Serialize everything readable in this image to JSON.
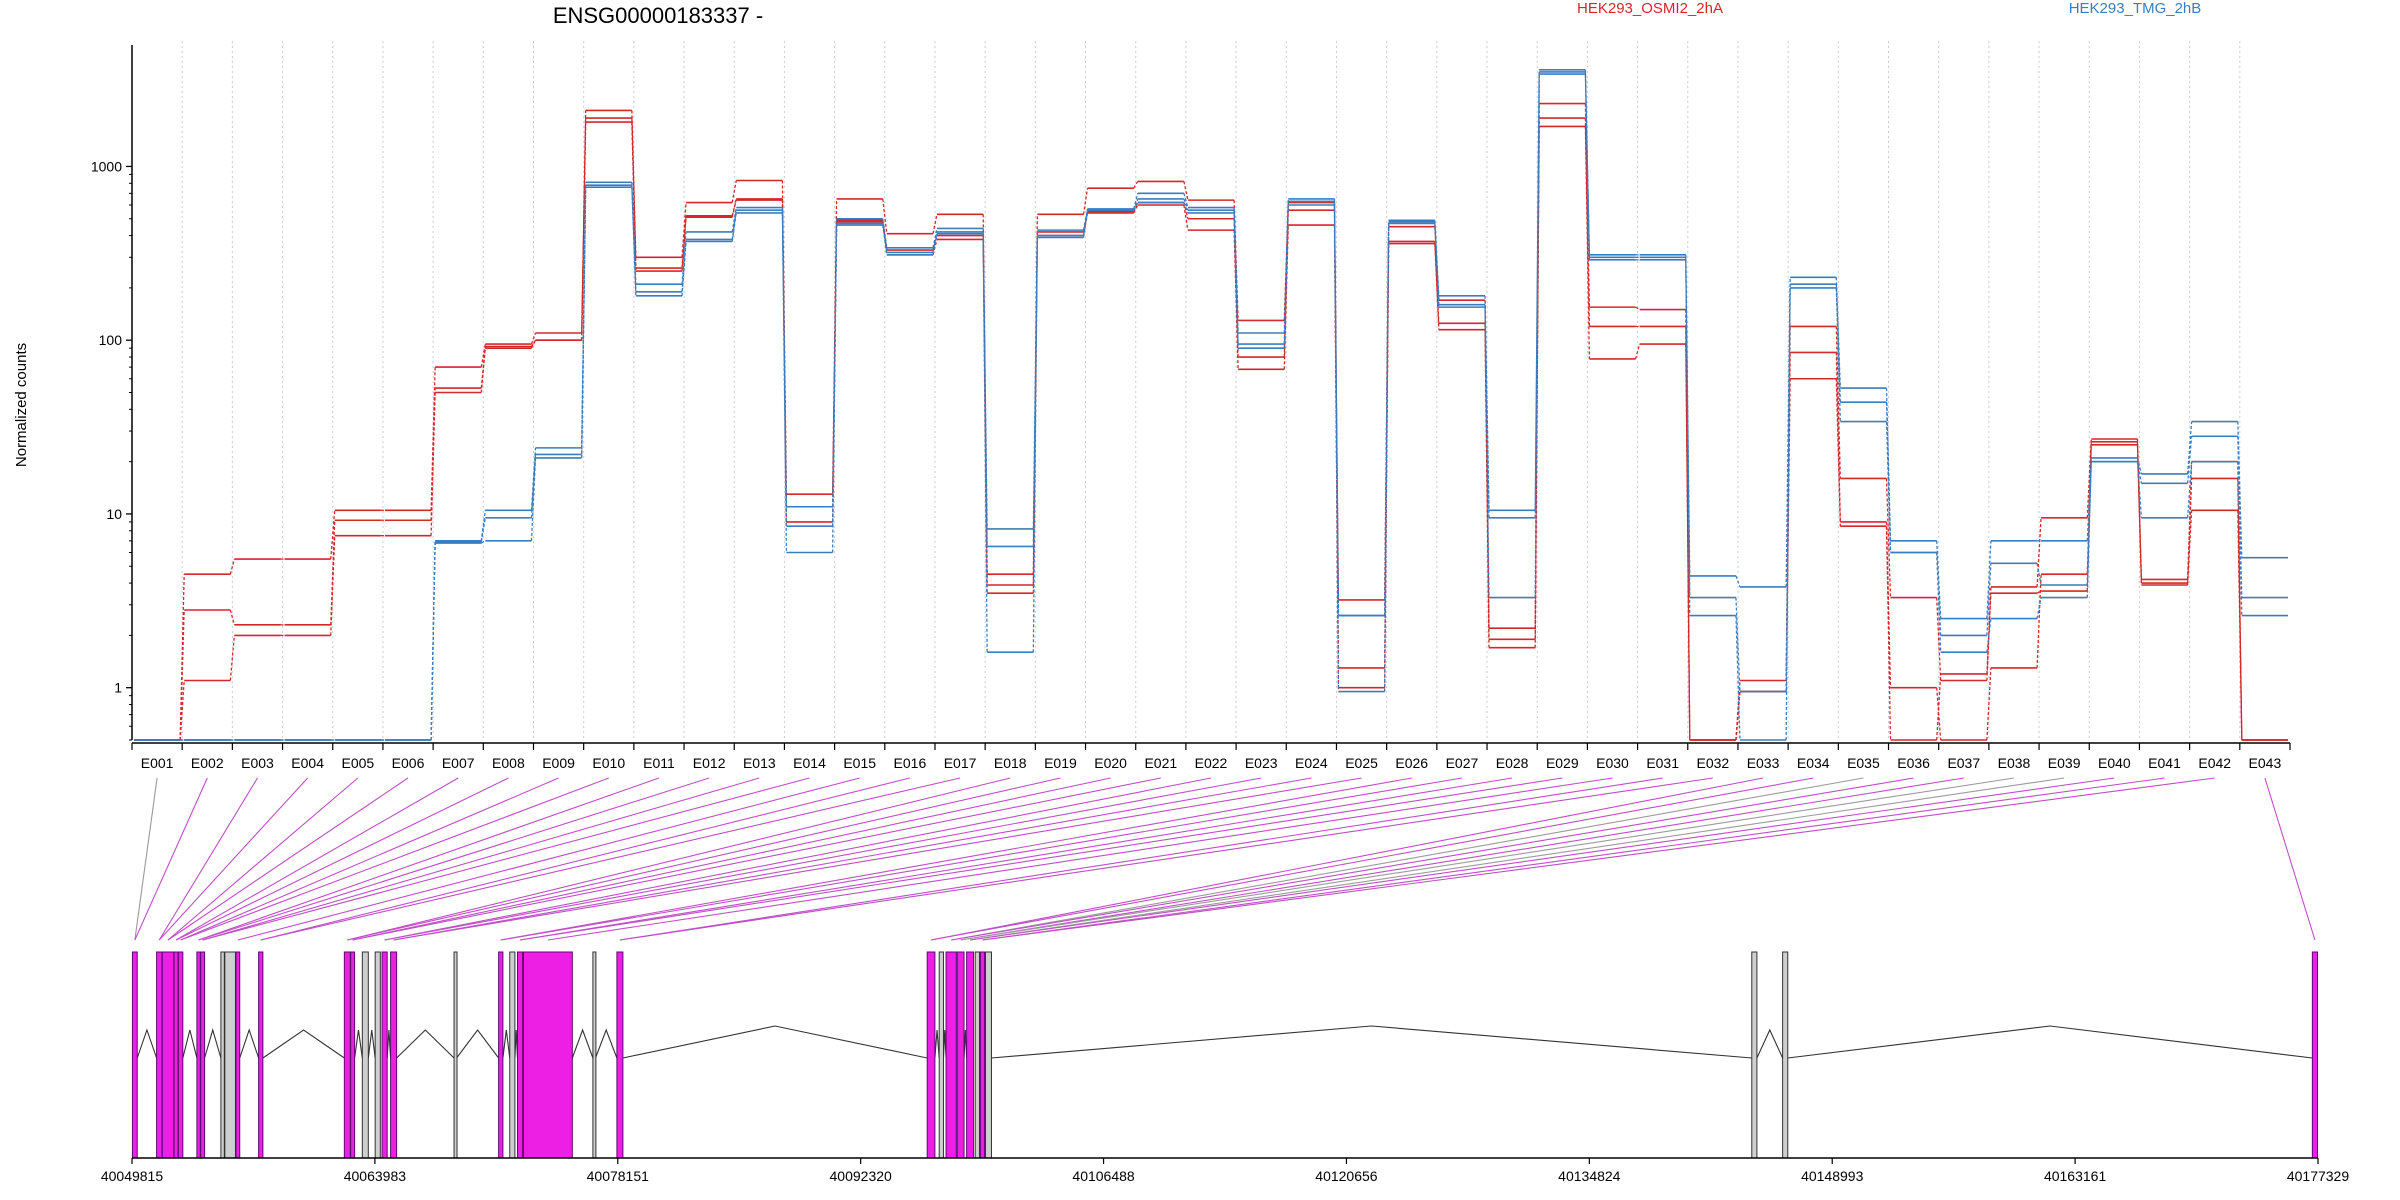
{
  "chart_data": {
    "type": "line",
    "title": "ENSG00000183337 -",
    "ylabel": "Normalized counts",
    "yscale": "log",
    "ylim": [
      0.5,
      5000
    ],
    "y_ticks": [
      1,
      10,
      100,
      1000
    ],
    "y_tick_labels": [
      "1",
      "10",
      "100",
      "1000"
    ],
    "grid": "vertical dashed at exon boundaries",
    "legend_position": "top",
    "categories": [
      "E001",
      "E002",
      "E003",
      "E004",
      "E005",
      "E006",
      "E007",
      "E008",
      "E009",
      "E010",
      "E011",
      "E012",
      "E013",
      "E014",
      "E015",
      "E016",
      "E017",
      "E018",
      "E019",
      "E020",
      "E021",
      "E022",
      "E023",
      "E024",
      "E025",
      "E026",
      "E027",
      "E028",
      "E029",
      "E030",
      "E031",
      "E032",
      "E033",
      "E034",
      "E035",
      "E036",
      "E037",
      "E038",
      "E039",
      "E040",
      "E041",
      "E042",
      "E043"
    ],
    "conditions": [
      {
        "name": "HEK293_OSMI2_2hA",
        "color": "#d62728"
      },
      {
        "name": "HEK293_TMG_2hB",
        "color": "#3a7dbf"
      }
    ],
    "series": [
      {
        "name": "HEK293_OSMI2_2hA",
        "color": "#d62728",
        "values": [
          0.5,
          4.5,
          5.5,
          5.5,
          10.5,
          10.5,
          70,
          95,
          110,
          2100,
          300,
          620,
          830,
          13,
          650,
          410,
          530,
          4.5,
          530,
          750,
          820,
          640,
          130,
          620,
          3.2,
          450,
          170,
          2.2,
          2300,
          155,
          150,
          0.5,
          1.1,
          120,
          16,
          3.3,
          1.1,
          3.8,
          9.5,
          27,
          4.2,
          20,
          0.5
        ]
      },
      {
        "name": "HEK293_OSMI2_2hA",
        "color": "#d62728",
        "values": [
          0.5,
          2.8,
          2.3,
          2.3,
          9.2,
          9.2,
          53,
          92,
          100,
          1900,
          260,
          520,
          640,
          11,
          480,
          330,
          400,
          3.9,
          420,
          550,
          620,
          500,
          80,
          560,
          1.3,
          370,
          125,
          1.9,
          1900,
          120,
          120,
          0.5,
          0.95,
          85,
          9,
          1.0,
          0.5,
          1.3,
          4.5,
          25,
          3.9,
          16,
          0.5
        ]
      },
      {
        "name": "HEK293_OSMI2_2hA",
        "color": "#d62728",
        "values": [
          0.5,
          1.1,
          2.0,
          2.0,
          7.5,
          7.5,
          50,
          90,
          100,
          1800,
          250,
          510,
          650,
          9,
          490,
          310,
          380,
          3.5,
          400,
          540,
          600,
          430,
          68,
          460,
          1.0,
          360,
          115,
          1.7,
          1700,
          78,
          95,
          0.5,
          0.95,
          60,
          8.5,
          0.5,
          1.2,
          3.5,
          3.6,
          26,
          4.0,
          10.5,
          0.5
        ]
      },
      {
        "name": "HEK293_TMG_2hB",
        "color": "#3a7dbf",
        "values": [
          0.5,
          0.5,
          0.5,
          0.5,
          0.5,
          0.5,
          7.0,
          10.5,
          24,
          810,
          210,
          420,
          580,
          8.5,
          500,
          340,
          440,
          8.2,
          430,
          570,
          700,
          580,
          110,
          650,
          2.6,
          490,
          180,
          10.5,
          3600,
          310,
          310,
          4.4,
          3.8,
          230,
          53,
          7.0,
          2.5,
          7.0,
          7.0,
          21,
          17,
          34,
          5.6
        ]
      },
      {
        "name": "HEK293_TMG_2hB",
        "color": "#3a7dbf",
        "values": [
          0.5,
          0.5,
          0.5,
          0.5,
          0.5,
          0.5,
          6.9,
          9.5,
          22,
          780,
          190,
          380,
          560,
          11,
          470,
          320,
          420,
          6.5,
          400,
          560,
          650,
          560,
          95,
          600,
          2.6,
          480,
          160,
          9.5,
          3400,
          300,
          300,
          3.3,
          0.95,
          210,
          44,
          6.0,
          2.0,
          5.2,
          3.9,
          20,
          15,
          28,
          3.3
        ]
      },
      {
        "name": "HEK293_TMG_2hB",
        "color": "#3a7dbf",
        "values": [
          0.5,
          0.5,
          0.5,
          0.5,
          0.5,
          0.5,
          6.8,
          7.0,
          21,
          760,
          180,
          370,
          540,
          6.0,
          460,
          310,
          410,
          1.6,
          390,
          560,
          620,
          540,
          90,
          630,
          0.95,
          470,
          155,
          3.3,
          3500,
          290,
          290,
          2.6,
          0.5,
          200,
          34,
          6.0,
          1.6,
          2.5,
          3.3,
          20,
          9.5,
          20,
          2.6
        ]
      }
    ],
    "gene_coordinates": {
      "ticks": [
        "40049815",
        "40063983",
        "40078151",
        "40092320",
        "40106488",
        "40120656",
        "40134824",
        "40148993",
        "40163161",
        "40177329"
      ],
      "start": 40049815,
      "end": 40177329
    },
    "exons": [
      {
        "start": 40049840,
        "end": 40050120,
        "kind": "bin"
      },
      {
        "start": 40051250,
        "end": 40051560,
        "kind": "bin"
      },
      {
        "start": 40051580,
        "end": 40052250,
        "kind": "bin"
      },
      {
        "start": 40052270,
        "end": 40052500,
        "kind": "bin"
      },
      {
        "start": 40052520,
        "end": 40052780,
        "kind": "bin"
      },
      {
        "start": 40053600,
        "end": 40053800,
        "kind": "bin"
      },
      {
        "start": 40053820,
        "end": 40054050,
        "kind": "bin"
      },
      {
        "start": 40055000,
        "end": 40055200,
        "kind": "other"
      },
      {
        "start": 40055230,
        "end": 40055850,
        "kind": "other"
      },
      {
        "start": 40055880,
        "end": 40056100,
        "kind": "bin"
      },
      {
        "start": 40057200,
        "end": 40057450,
        "kind": "bin"
      },
      {
        "start": 40062200,
        "end": 40062550,
        "kind": "bin"
      },
      {
        "start": 40062570,
        "end": 40062800,
        "kind": "bin"
      },
      {
        "start": 40063250,
        "end": 40063600,
        "kind": "other"
      },
      {
        "start": 40064000,
        "end": 40064300,
        "kind": "other"
      },
      {
        "start": 40064400,
        "end": 40064700,
        "kind": "bin"
      },
      {
        "start": 40064900,
        "end": 40065250,
        "kind": "bin"
      },
      {
        "start": 40068600,
        "end": 40068750,
        "kind": "other"
      },
      {
        "start": 40071200,
        "end": 40071450,
        "kind": "bin"
      },
      {
        "start": 40071850,
        "end": 40072150,
        "kind": "other"
      },
      {
        "start": 40072300,
        "end": 40072600,
        "kind": "bin"
      },
      {
        "start": 40072650,
        "end": 40075500,
        "kind": "bin"
      },
      {
        "start": 40076700,
        "end": 40076850,
        "kind": "other"
      },
      {
        "start": 40078100,
        "end": 40078450,
        "kind": "bin"
      },
      {
        "start": 40096200,
        "end": 40096650,
        "kind": "bin"
      },
      {
        "start": 40096900,
        "end": 40097150,
        "kind": "other"
      },
      {
        "start": 40097300,
        "end": 40097900,
        "kind": "bin"
      },
      {
        "start": 40097950,
        "end": 40098350,
        "kind": "bin"
      },
      {
        "start": 40098500,
        "end": 40098900,
        "kind": "bin"
      },
      {
        "start": 40099000,
        "end": 40099250,
        "kind": "other"
      },
      {
        "start": 40099300,
        "end": 40099550,
        "kind": "bin"
      },
      {
        "start": 40099600,
        "end": 40099950,
        "kind": "other"
      },
      {
        "start": 40144300,
        "end": 40144600,
        "kind": "other"
      },
      {
        "start": 40146100,
        "end": 40146400,
        "kind": "other"
      },
      {
        "start": 40177000,
        "end": 40177300,
        "kind": "bin"
      }
    ],
    "introns_arcs": "shown"
  }
}
